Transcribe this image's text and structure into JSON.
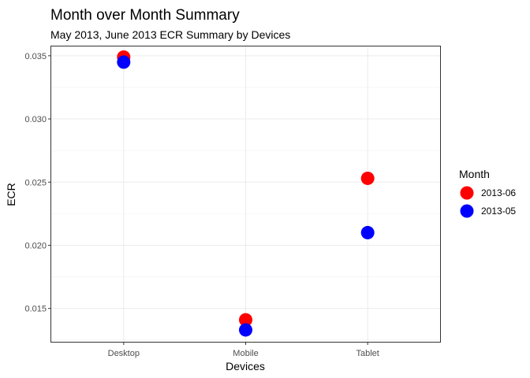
{
  "chart_data": {
    "type": "scatter",
    "title": "Month over Month Summary",
    "subtitle": "May 2013, June 2013 ECR Summary by Devices",
    "xlabel": "Devices",
    "ylabel": "ECR",
    "categories": [
      "Desktop",
      "Mobile",
      "Tablet"
    ],
    "y_ticks": [
      "0.015",
      "0.020",
      "0.025",
      "0.030",
      "0.035"
    ],
    "ylim": [
      0.0123,
      0.0358
    ],
    "grid": true,
    "legend": {
      "title": "Month",
      "position": "right"
    },
    "series": [
      {
        "name": "2013-06",
        "color": "#ff0000",
        "values": [
          0.0349,
          0.0141,
          0.0253
        ]
      },
      {
        "name": "2013-05",
        "color": "#0000ff",
        "values": [
          0.0345,
          0.0133,
          0.021
        ]
      }
    ]
  }
}
